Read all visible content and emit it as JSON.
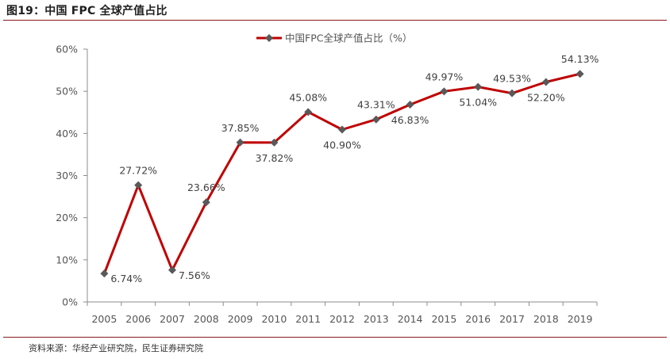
{
  "header": {
    "title": "图19：中国 FPC 全球产值占比"
  },
  "footer": {
    "source": "资料来源：华经产业研究院，民生证券研究院"
  },
  "colors": {
    "series": "#c00000",
    "marker": "#595959",
    "rule": "#8a1a1a",
    "axis": "#8c8c8c"
  },
  "chart_data": {
    "type": "line",
    "title": "",
    "xlabel": "",
    "ylabel": "",
    "x": [
      "2005",
      "2006",
      "2007",
      "2008",
      "2009",
      "2010",
      "2011",
      "2012",
      "2013",
      "2014",
      "2015",
      "2016",
      "2017",
      "2018",
      "2019"
    ],
    "series": [
      {
        "name": "中国FPC全球产值占比（%）",
        "values": [
          6.74,
          27.72,
          7.56,
          23.66,
          37.85,
          37.82,
          45.08,
          40.9,
          43.31,
          46.83,
          49.97,
          51.04,
          49.53,
          52.2,
          54.13
        ],
        "labels": [
          "6.74%",
          "27.72%",
          "7.56%",
          "23.66%",
          "37.85%",
          "37.82%",
          "45.08%",
          "40.90%",
          "43.31%",
          "46.83%",
          "49.97%",
          "51.04%",
          "49.53%",
          "52.20%",
          "54.13%"
        ],
        "label_positions": [
          "right",
          "above",
          "right",
          "above",
          "above",
          "below",
          "above",
          "below",
          "above",
          "below",
          "above",
          "below",
          "above",
          "below",
          "above"
        ]
      }
    ],
    "ylim": [
      0,
      60
    ],
    "yticks": [
      0,
      10,
      20,
      30,
      40,
      50,
      60
    ],
    "ytick_labels": [
      "0%",
      "10%",
      "20%",
      "30%",
      "40%",
      "50%",
      "60%"
    ],
    "grid": false,
    "legend": "top-center",
    "marker": "diamond"
  }
}
